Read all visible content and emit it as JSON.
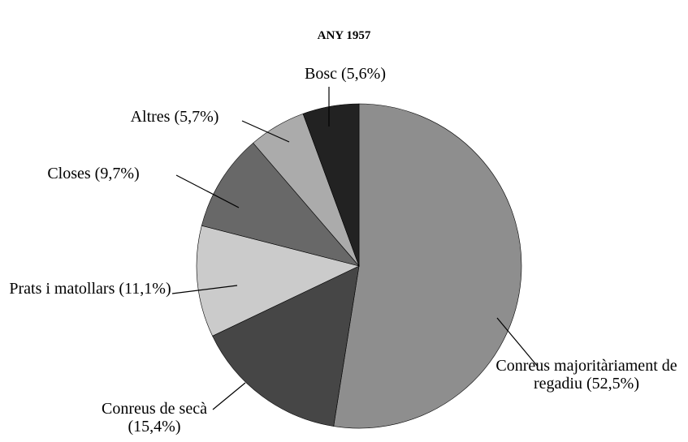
{
  "chart_data": {
    "type": "pie",
    "title": "ANY 1957",
    "categories": [
      "Conreus majoritàriament de regadiu",
      "Conreus de secà",
      "Prats i matollars",
      "Closes",
      "Altres",
      "Bosc"
    ],
    "values": [
      52.5,
      15.4,
      11.1,
      9.7,
      5.7,
      5.6
    ],
    "value_labels": [
      "(52,5%)",
      "(15,4%)",
      "(11,1%)",
      "(9,7%)",
      "(5,7%)",
      "(5,6%)"
    ],
    "colors": [
      "#8e8e8e",
      "#464646",
      "#cbcbcb",
      "#686868",
      "#ababab",
      "#222222"
    ]
  }
}
